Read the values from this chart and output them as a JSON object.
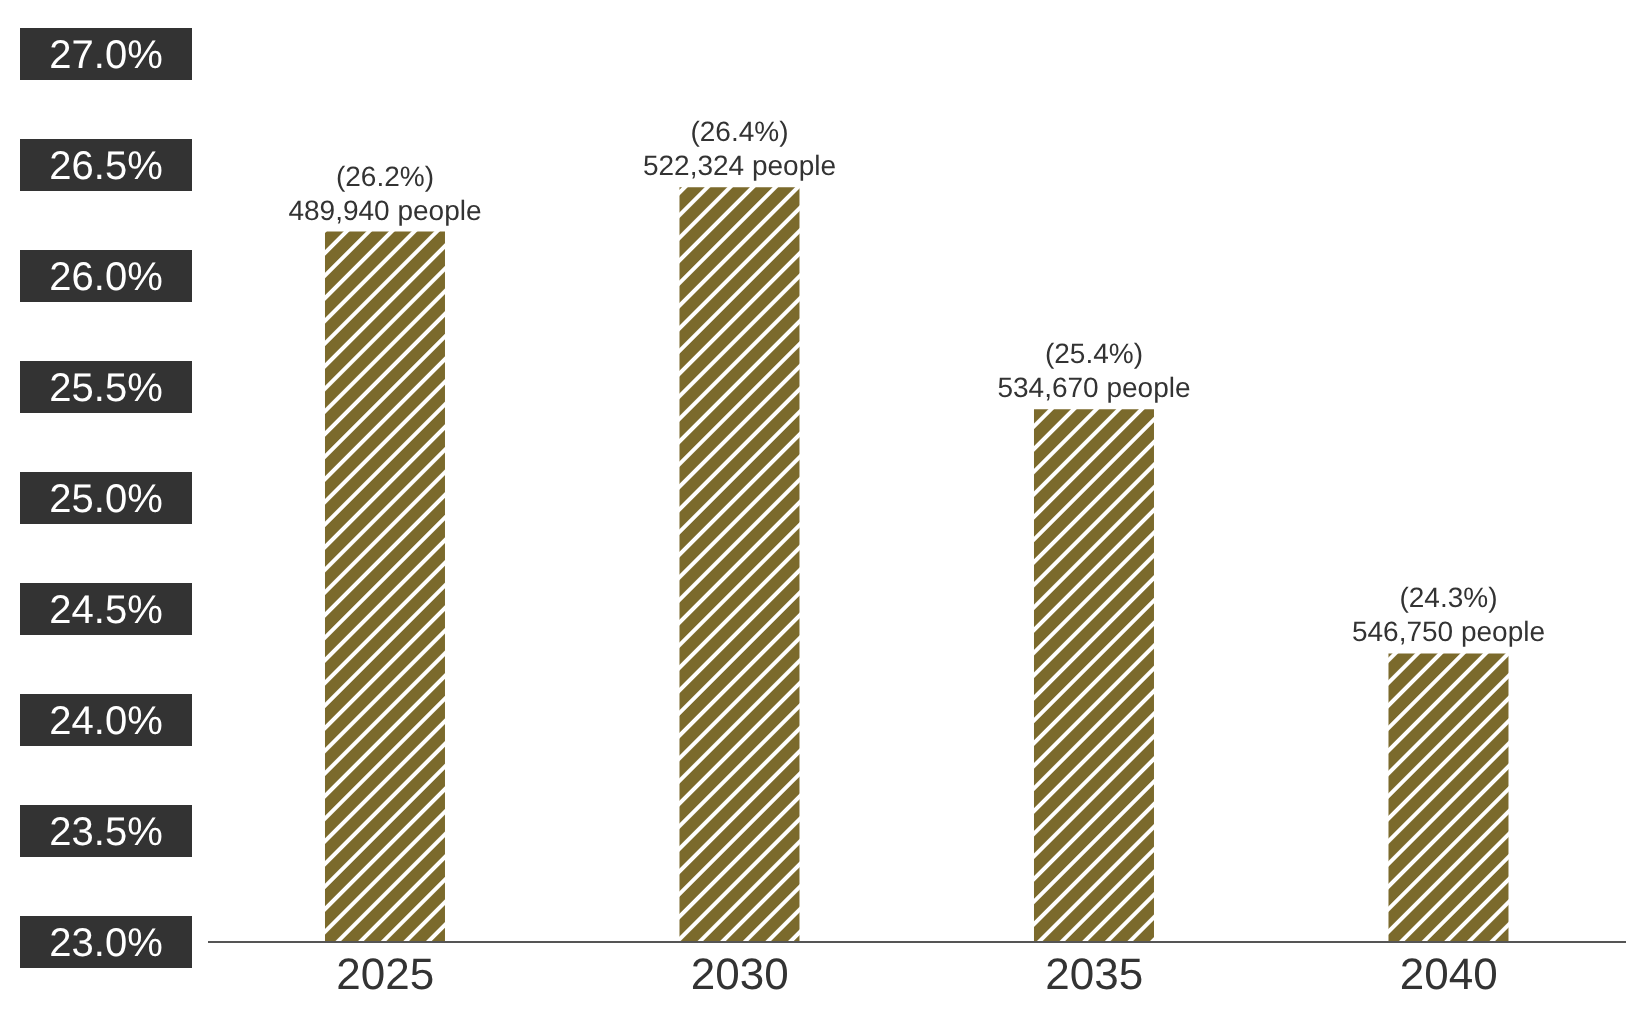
{
  "chart_data": {
    "type": "bar",
    "categories": [
      "2025",
      "2030",
      "2035",
      "2040"
    ],
    "values": [
      26.2,
      26.4,
      25.4,
      24.3
    ],
    "color": "#7b6a2c",
    "value_labels": [
      "(26.2%)\n489,940 people",
      "(26.4%)\n522,324 people",
      "(25.4%)\n534,670 people",
      "(24.3%)\n546,750 people"
    ],
    "ylim": [
      23,
      27
    ],
    "yticks": [
      {
        "value": 23,
        "label": "23.0%"
      },
      {
        "value": 23.5,
        "label": "23.5%"
      },
      {
        "value": 24,
        "label": "24.0%"
      },
      {
        "value": 24.5,
        "label": "24.5%"
      },
      {
        "value": 25,
        "label": "25.0%"
      },
      {
        "value": 25.5,
        "label": "25.5%"
      },
      {
        "value": 26,
        "label": "26.0%"
      },
      {
        "value": 26.5,
        "label": "26.5%"
      },
      {
        "value": 27,
        "label": "27.0%"
      }
    ],
    "grid": false,
    "legend": false
  }
}
